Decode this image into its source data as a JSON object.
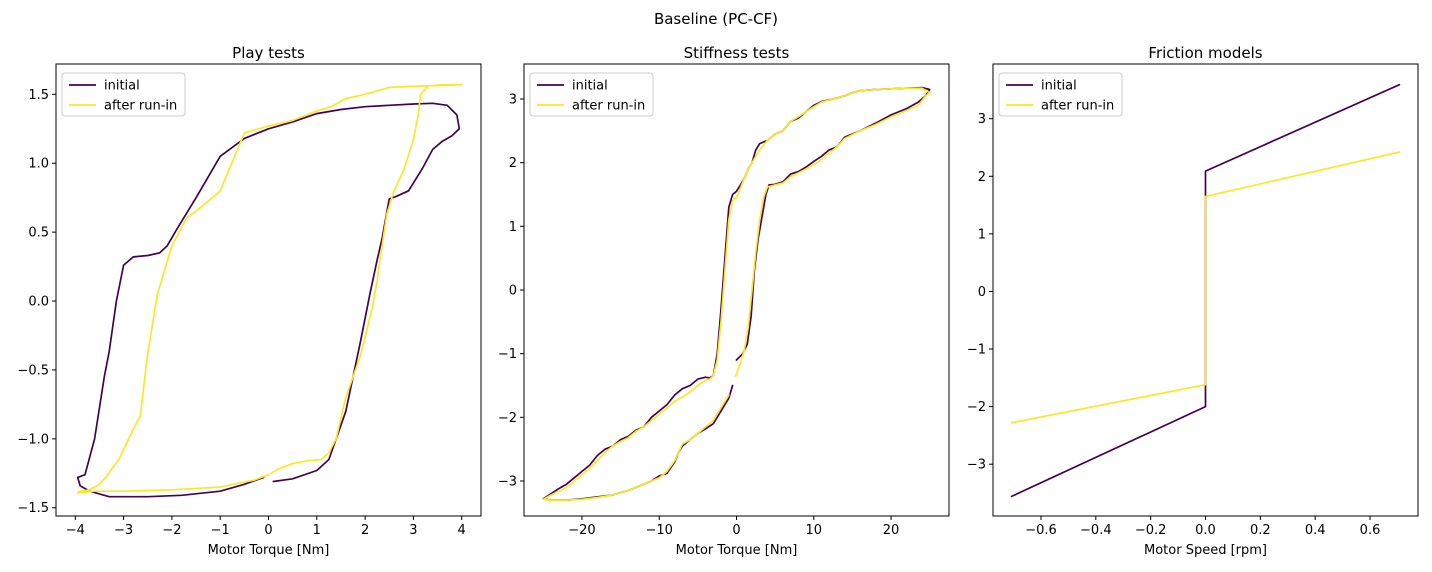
{
  "figure": {
    "title": "Baseline (PC-CF)"
  },
  "colors": {
    "initial": "#440154",
    "after_run_in": "#fde725"
  },
  "chart_data": [
    {
      "type": "line",
      "title": "Play tests",
      "xlabel": "Motor Torque [Nm]",
      "ylabel": "",
      "xlim": [
        -4.4,
        4.4
      ],
      "ylim": [
        -1.56,
        1.72
      ],
      "xticks": [
        -4,
        -3,
        -2,
        -1,
        0,
        1,
        2,
        3,
        4
      ],
      "xtick_labels": [
        "−4",
        "−3",
        "−2",
        "−1",
        "0",
        "1",
        "2",
        "3",
        "4"
      ],
      "yticks": [
        -1.5,
        -1.0,
        -0.5,
        0.0,
        0.5,
        1.0,
        1.5
      ],
      "ytick_labels": [
        "−1.5",
        "−1.0",
        "−0.5",
        "0.0",
        "0.5",
        "1.0",
        "1.5"
      ],
      "legend": {
        "position": "top-left",
        "entries": [
          "initial",
          "after run-in"
        ]
      },
      "series": [
        {
          "name": "initial",
          "color": "#440154",
          "x": [
            0.1,
            0.5,
            1.0,
            1.25,
            1.6,
            1.9,
            2.1,
            2.25,
            2.35,
            2.5,
            2.65,
            2.9,
            3.2,
            3.4,
            3.6,
            3.8,
            3.95,
            3.9,
            3.7,
            3.4,
            3.0,
            2.5,
            2.0,
            1.5,
            1.0,
            0.5,
            0.0,
            -0.5,
            -1.0,
            -1.5,
            -1.9,
            -2.1,
            -2.25,
            -2.5,
            -2.8,
            -3.0,
            -3.15,
            -3.3,
            -3.4,
            -3.6,
            -3.8,
            -3.95,
            -3.9,
            -3.7,
            -3.3,
            -2.5,
            -1.8,
            -1.0,
            -0.5,
            -0.1
          ],
          "y": [
            -1.31,
            -1.29,
            -1.23,
            -1.15,
            -0.8,
            -0.3,
            0.05,
            0.3,
            0.45,
            0.74,
            0.76,
            0.8,
            0.97,
            1.1,
            1.16,
            1.2,
            1.25,
            1.35,
            1.42,
            1.435,
            1.43,
            1.42,
            1.41,
            1.39,
            1.36,
            1.3,
            1.25,
            1.18,
            1.05,
            0.75,
            0.52,
            0.4,
            0.35,
            0.33,
            0.32,
            0.26,
            0.0,
            -0.37,
            -0.55,
            -1.0,
            -1.26,
            -1.28,
            -1.34,
            -1.38,
            -1.42,
            -1.42,
            -1.41,
            -1.38,
            -1.33,
            -1.28
          ]
        },
        {
          "name": "after run-in",
          "color": "#fde725",
          "x": [
            0.05,
            0.2,
            0.5,
            0.8,
            1.1,
            1.25,
            1.4,
            1.6,
            1.9,
            2.15,
            2.25,
            2.3,
            2.45,
            2.6,
            2.8,
            3.0,
            3.1,
            3.15,
            3.3,
            3.6,
            4.0,
            3.2,
            2.5,
            2.0,
            1.6,
            1.3,
            1.0,
            0.5,
            0.0,
            -0.5,
            -1.0,
            -1.4,
            -1.7,
            -2.0,
            -2.3,
            -2.5,
            -2.55,
            -2.65,
            -2.8,
            -3.1,
            -3.35,
            -3.5,
            -3.7,
            -3.9,
            -3.95,
            -3.6,
            -3.0,
            -2.0,
            -1.0,
            -0.3,
            0.0
          ],
          "y": [
            -1.25,
            -1.22,
            -1.18,
            -1.16,
            -1.15,
            -1.1,
            -1.0,
            -0.7,
            -0.4,
            -0.05,
            0.15,
            0.28,
            0.63,
            0.8,
            0.95,
            1.17,
            1.35,
            1.5,
            1.56,
            1.57,
            1.57,
            1.56,
            1.55,
            1.5,
            1.47,
            1.41,
            1.38,
            1.31,
            1.27,
            1.22,
            0.8,
            0.68,
            0.6,
            0.4,
            0.05,
            -0.38,
            -0.52,
            -0.83,
            -0.93,
            -1.15,
            -1.27,
            -1.33,
            -1.37,
            -1.38,
            -1.39,
            -1.38,
            -1.38,
            -1.37,
            -1.35,
            -1.3,
            -1.26
          ]
        }
      ]
    },
    {
      "type": "line",
      "title": "Stiffness tests",
      "xlabel": "Motor Torque [Nm]",
      "ylabel": "",
      "xlim": [
        -27.5,
        27.5
      ],
      "ylim": [
        -3.55,
        3.55
      ],
      "xticks": [
        -20,
        -10,
        0,
        10,
        20
      ],
      "xtick_labels": [
        "−20",
        "−10",
        "0",
        "10",
        "20"
      ],
      "yticks": [
        -3,
        -2,
        -1,
        0,
        1,
        2,
        3
      ],
      "ytick_labels": [
        "−3",
        "−2",
        "−1",
        "0",
        "1",
        "2",
        "3"
      ],
      "legend": {
        "position": "top-left",
        "entries": [
          "initial",
          "after run-in"
        ]
      },
      "series": [
        {
          "name": "initial",
          "color": "#440154",
          "x": [
            0.0,
            0.8,
            1.4,
            1.9,
            2.3,
            2.8,
            3.3,
            3.8,
            4.2,
            5.0,
            6.0,
            7.0,
            8.0,
            9.0,
            10.0,
            11.0,
            12.0,
            13.0,
            14.0,
            16.0,
            18.0,
            20.0,
            22.0,
            23.5,
            24.5,
            25.0,
            24.0,
            22.0,
            20.0,
            18.0,
            16.0,
            15.0,
            14.0,
            12.5,
            11.0,
            10.0,
            8.0,
            7.0,
            6.0,
            5.0,
            4.0,
            3.0,
            2.5,
            2.0,
            1.5,
            1.0,
            0.5,
            0.0,
            -0.5,
            -1.0,
            -1.5,
            -2.0,
            -2.5,
            -3.0,
            -3.5,
            -4.0,
            -5.0,
            -6.0,
            -7.0,
            -8.0,
            -9.0,
            -10.0,
            -11.0,
            -12.0,
            -13.0,
            -14.0,
            -15.0,
            -16.0,
            -17.0,
            -18.0,
            -19.0,
            -20.0,
            -21.0,
            -22.0,
            -23.0,
            -24.0,
            -25.0,
            -24.0,
            -22.0,
            -20.0,
            -18.0,
            -16.0,
            -15.0,
            -14.0,
            -13.0,
            -12.0,
            -11.0,
            -10.0,
            -9.0,
            -8.0,
            -7.5,
            -7.0,
            -6.0,
            -5.0,
            -4.0,
            -3.0,
            -2.5,
            -2.0,
            -1.0,
            -0.5
          ],
          "y": [
            -1.1,
            -1.0,
            -0.85,
            -0.4,
            0.3,
            0.8,
            1.15,
            1.5,
            1.65,
            1.66,
            1.7,
            1.82,
            1.86,
            1.93,
            2.02,
            2.1,
            2.2,
            2.25,
            2.4,
            2.5,
            2.62,
            2.75,
            2.85,
            2.95,
            3.05,
            3.15,
            3.18,
            3.17,
            3.16,
            3.15,
            3.13,
            3.1,
            3.05,
            3.0,
            2.96,
            2.9,
            2.7,
            2.65,
            2.5,
            2.45,
            2.35,
            2.3,
            2.2,
            2.0,
            1.9,
            1.75,
            1.65,
            1.55,
            1.5,
            1.3,
            0.5,
            -0.3,
            -1.0,
            -1.35,
            -1.38,
            -1.37,
            -1.4,
            -1.5,
            -1.55,
            -1.65,
            -1.8,
            -1.9,
            -2.0,
            -2.15,
            -2.2,
            -2.3,
            -2.35,
            -2.45,
            -2.5,
            -2.6,
            -2.75,
            -2.85,
            -2.95,
            -3.05,
            -3.12,
            -3.2,
            -3.28,
            -3.3,
            -3.3,
            -3.28,
            -3.25,
            -3.22,
            -3.18,
            -3.15,
            -3.1,
            -3.05,
            -3.0,
            -2.92,
            -2.88,
            -2.7,
            -2.55,
            -2.45,
            -2.35,
            -2.25,
            -2.18,
            -2.1,
            -2.0,
            -1.9,
            -1.7,
            -1.5
          ]
        },
        {
          "name": "after run-in",
          "color": "#fde725",
          "x": [
            -0.1,
            0.5,
            1.0,
            1.5,
            2.0,
            2.5,
            3.0,
            3.5,
            4.0,
            5.0,
            6.0,
            7.0,
            8.0,
            9.0,
            10.0,
            11.0,
            12.0,
            13.0,
            14.0,
            16.0,
            18.0,
            20.0,
            22.0,
            23.5,
            24.5,
            25.0,
            24.0,
            22.0,
            20.0,
            18.0,
            16.0,
            15.0,
            14.0,
            12.5,
            11.0,
            10.0,
            8.0,
            7.0,
            6.0,
            5.0,
            4.0,
            3.0,
            2.5,
            2.0,
            1.5,
            1.0,
            0.5,
            0.0,
            -0.5,
            -1.0,
            -1.5,
            -2.0,
            -2.5,
            -3.0,
            -3.5,
            -4.0,
            -5.0,
            -6.0,
            -7.0,
            -8.0,
            -9.0,
            -10.0,
            -11.0,
            -12.0,
            -13.0,
            -14.0,
            -15.0,
            -16.0,
            -17.0,
            -18.0,
            -19.0,
            -20.0,
            -21.0,
            -22.0,
            -23.0,
            -24.0,
            -25.0,
            -24.0,
            -22.0,
            -20.0,
            -18.0,
            -16.0,
            -15.0,
            -14.0,
            -13.0,
            -12.0,
            -11.0,
            -10.0,
            -9.0,
            -8.0,
            -7.5,
            -7.0,
            -6.0,
            -5.0,
            -4.0,
            -3.0,
            -2.5,
            -2.0,
            -1.0
          ],
          "y": [
            -1.35,
            -1.15,
            -0.95,
            -0.6,
            0.0,
            0.6,
            1.1,
            1.45,
            1.62,
            1.65,
            1.68,
            1.78,
            1.84,
            1.9,
            1.97,
            2.05,
            2.15,
            2.25,
            2.38,
            2.5,
            2.6,
            2.72,
            2.82,
            2.9,
            3.05,
            3.1,
            3.17,
            3.17,
            3.16,
            3.15,
            3.13,
            3.1,
            3.05,
            3.0,
            2.95,
            2.88,
            2.72,
            2.65,
            2.5,
            2.45,
            2.35,
            2.2,
            2.1,
            2.0,
            1.9,
            1.75,
            1.6,
            1.45,
            1.4,
            1.1,
            0.3,
            -0.5,
            -1.1,
            -1.35,
            -1.4,
            -1.42,
            -1.5,
            -1.6,
            -1.68,
            -1.75,
            -1.85,
            -1.95,
            -2.05,
            -2.15,
            -2.22,
            -2.32,
            -2.38,
            -2.45,
            -2.55,
            -2.68,
            -2.8,
            -2.9,
            -3.0,
            -3.1,
            -3.16,
            -3.22,
            -3.29,
            -3.3,
            -3.3,
            -3.29,
            -3.26,
            -3.22,
            -3.18,
            -3.15,
            -3.1,
            -3.05,
            -3.0,
            -2.95,
            -2.85,
            -2.68,
            -2.55,
            -2.42,
            -2.35,
            -2.25,
            -2.15,
            -2.05,
            -1.95,
            -1.85,
            -1.65
          ]
        }
      ]
    },
    {
      "type": "line",
      "title": "Friction models",
      "xlabel": "Motor Speed [rpm]",
      "ylabel": "",
      "xlim": [
        -0.775,
        0.775
      ],
      "ylim": [
        -3.9,
        3.95
      ],
      "xticks": [
        -0.6,
        -0.4,
        -0.2,
        0.0,
        0.2,
        0.4,
        0.6
      ],
      "xtick_labels": [
        "−0.6",
        "−0.4",
        "−0.2",
        "0.0",
        "0.2",
        "0.4",
        "0.6"
      ],
      "yticks": [
        -3,
        -2,
        -1,
        0,
        1,
        2,
        3
      ],
      "ytick_labels": [
        "−3",
        "−2",
        "−1",
        "0",
        "1",
        "2",
        "3"
      ],
      "legend": {
        "position": "top-left",
        "entries": [
          "initial",
          "after run-in"
        ]
      },
      "series": [
        {
          "name": "initial",
          "color": "#440154",
          "x": [
            -0.707,
            0.0,
            0.0,
            0.707
          ],
          "y": [
            -3.56,
            -2.0,
            2.09,
            3.59
          ]
        },
        {
          "name": "after run-in",
          "color": "#fde725",
          "x": [
            -0.707,
            0.0,
            0.0,
            0.707
          ],
          "y": [
            -2.28,
            -1.62,
            1.65,
            2.42
          ]
        }
      ]
    }
  ]
}
